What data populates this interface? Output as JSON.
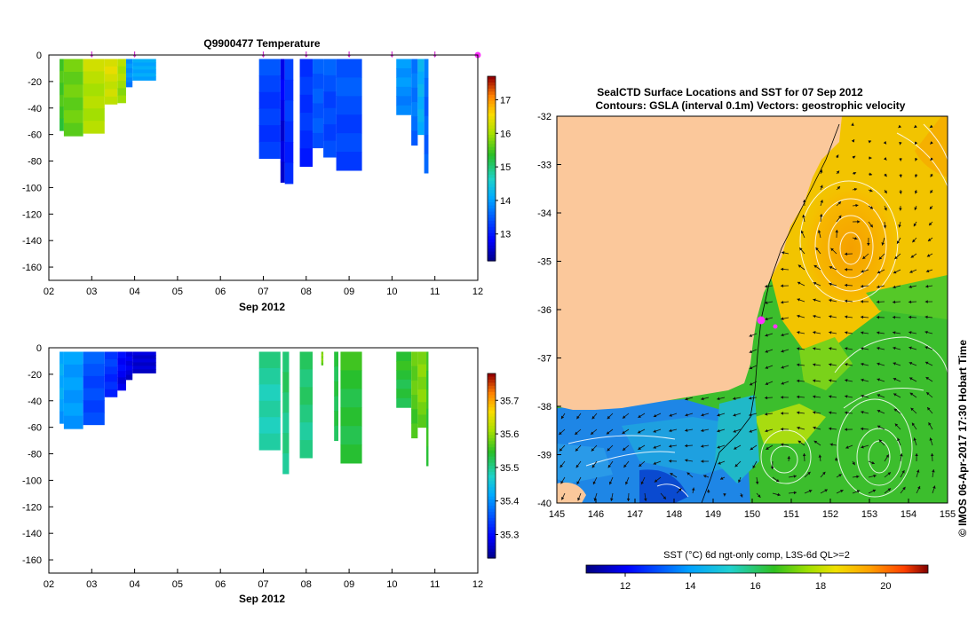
{
  "chart_data": [
    {
      "type": "heatmap",
      "title": "Q9900477  Temperature",
      "xlabel": "Sep 2012",
      "ylabel": "",
      "x_ticks": [
        "02",
        "03",
        "04",
        "05",
        "06",
        "07",
        "08",
        "09",
        "10",
        "11",
        "12"
      ],
      "x_range": [
        2,
        12
      ],
      "y_range": [
        -170,
        0
      ],
      "y_ticks": [
        0,
        -20,
        -40,
        -60,
        -80,
        -100,
        -120,
        -140,
        -160
      ],
      "colorbar": {
        "min": 12.2,
        "max": 17.7,
        "ticks": [
          13,
          14,
          15,
          16,
          17
        ]
      },
      "markers": [
        3.0,
        4.0,
        7.0,
        8.0,
        9.0,
        10.0,
        11.0,
        12.0
      ],
      "profiles": [
        {
          "t0": 2.25,
          "t1": 2.35,
          "depth": -57,
          "value": 15.6
        },
        {
          "t0": 2.35,
          "t1": 2.8,
          "depth": -61,
          "value": 15.8
        },
        {
          "t0": 2.8,
          "t1": 3.3,
          "depth": -59,
          "value": 16.2
        },
        {
          "t0": 3.3,
          "t1": 3.6,
          "depth": -37,
          "value": 16.4
        },
        {
          "t0": 3.6,
          "t1": 3.8,
          "depth": -36,
          "value": 16.1
        },
        {
          "t0": 3.8,
          "t1": 3.95,
          "depth": -24,
          "value": 14.0
        },
        {
          "t0": 3.95,
          "t1": 4.5,
          "depth": -19,
          "value": 14.2
        },
        {
          "t0": 6.9,
          "t1": 7.4,
          "depth": -78,
          "value": 13.4
        },
        {
          "t0": 7.4,
          "t1": 7.5,
          "depth": -96,
          "value": 12.8
        },
        {
          "t0": 7.5,
          "t1": 7.7,
          "depth": -97,
          "value": 13.3
        },
        {
          "t0": 7.85,
          "t1": 8.15,
          "depth": -84,
          "value": 13.3
        },
        {
          "t0": 8.15,
          "t1": 8.4,
          "depth": -70,
          "value": 13.6
        },
        {
          "t0": 8.4,
          "t1": 8.7,
          "depth": -77,
          "value": 13.5
        },
        {
          "t0": 8.7,
          "t1": 9.3,
          "depth": -87,
          "value": 13.5
        },
        {
          "t0": 10.1,
          "t1": 10.45,
          "depth": -45,
          "value": 14.0
        },
        {
          "t0": 10.45,
          "t1": 10.6,
          "depth": -68,
          "value": 13.8
        },
        {
          "t0": 10.6,
          "t1": 10.75,
          "depth": -60,
          "value": 14.3
        },
        {
          "t0": 10.75,
          "t1": 10.85,
          "depth": -89,
          "value": 13.7
        }
      ]
    },
    {
      "type": "heatmap",
      "title": "",
      "xlabel": "Sep 2012",
      "ylabel": "",
      "x_ticks": [
        "02",
        "03",
        "04",
        "05",
        "06",
        "07",
        "08",
        "09",
        "10",
        "11",
        "12"
      ],
      "x_range": [
        2,
        12
      ],
      "y_range": [
        -170,
        0
      ],
      "y_ticks": [
        0,
        -20,
        -40,
        -60,
        -80,
        -100,
        -120,
        -140,
        -160
      ],
      "colorbar": {
        "min": 35.23,
        "max": 35.78,
        "ticks": [
          35.3,
          35.4,
          35.5,
          35.6,
          35.7
        ]
      },
      "profiles": [
        {
          "t0": 2.25,
          "t1": 2.35,
          "depth": -57,
          "value": 35.43
        },
        {
          "t0": 2.35,
          "t1": 2.8,
          "depth": -61,
          "value": 35.42
        },
        {
          "t0": 2.8,
          "t1": 3.3,
          "depth": -58,
          "value": 35.36
        },
        {
          "t0": 3.3,
          "t1": 3.6,
          "depth": -37,
          "value": 35.34
        },
        {
          "t0": 3.6,
          "t1": 3.8,
          "depth": -32,
          "value": 35.3
        },
        {
          "t0": 3.8,
          "t1": 3.95,
          "depth": -24,
          "value": 35.29
        },
        {
          "t0": 3.95,
          "t1": 4.5,
          "depth": -19,
          "value": 35.28
        },
        {
          "t0": 6.9,
          "t1": 7.4,
          "depth": -77,
          "value": 35.5
        },
        {
          "t0": 7.45,
          "t1": 7.6,
          "depth": -95,
          "value": 35.52
        },
        {
          "t0": 7.85,
          "t1": 8.15,
          "depth": -83,
          "value": 35.52
        },
        {
          "t0": 8.35,
          "t1": 8.4,
          "depth": -13,
          "value": 35.6
        },
        {
          "t0": 8.65,
          "t1": 8.75,
          "depth": -70,
          "value": 35.54
        },
        {
          "t0": 8.8,
          "t1": 9.3,
          "depth": -87,
          "value": 35.55
        },
        {
          "t0": 10.1,
          "t1": 10.45,
          "depth": -45,
          "value": 35.55
        },
        {
          "t0": 10.45,
          "t1": 10.6,
          "depth": -68,
          "value": 35.58
        },
        {
          "t0": 10.6,
          "t1": 10.8,
          "depth": -60,
          "value": 35.6
        },
        {
          "t0": 10.8,
          "t1": 10.85,
          "depth": -89,
          "value": 35.56
        }
      ]
    },
    {
      "type": "heatmap",
      "title": "SealCTD Surface Locations and SST for 07 Sep 2012",
      "subtitle": "Contours: GSLA (interval 0.1m) Vectors: geostrophic velocity",
      "xlabel": "",
      "ylabel": "",
      "x_ticks": [
        "145",
        "146",
        "147",
        "148",
        "149",
        "150",
        "151",
        "152",
        "153",
        "154",
        "155"
      ],
      "y_ticks": [
        "-32",
        "-33",
        "-34",
        "-35",
        "-36",
        "-37",
        "-38",
        "-39",
        "-40"
      ],
      "x_range": [
        145,
        155
      ],
      "y_range": [
        -40,
        -32
      ],
      "colorbar": {
        "label": "SST (°C) 6d ngt-only comp, L3S-6d QL>=2",
        "min": 10.8,
        "max": 21.3,
        "ticks": [
          "12",
          "14",
          "16",
          "18",
          "20"
        ]
      },
      "eddies": [
        {
          "lon": 152.6,
          "lat": -34.7,
          "kind": "warm"
        },
        {
          "lon": 153.0,
          "lat": -39.0,
          "kind": "cold"
        },
        {
          "lon": 151.3,
          "lat": -39.2,
          "kind": "cold"
        },
        {
          "lon": 148.5,
          "lat": -39.3,
          "kind": "cold"
        }
      ],
      "seal_locations": [
        {
          "lon": 150.2,
          "lat": -36.2
        },
        {
          "lon": 150.7,
          "lat": -36.3
        }
      ],
      "credit": "© IMOS 06-Apr-2017 17:30 Hobart Time"
    }
  ]
}
